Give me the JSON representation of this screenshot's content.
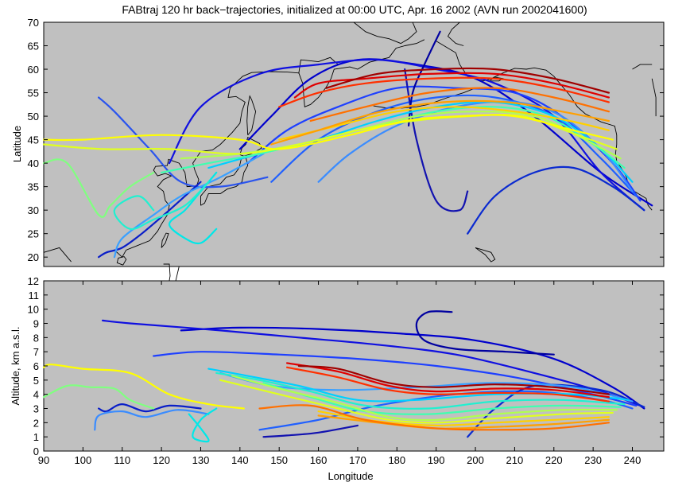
{
  "chart_data": [
    {
      "type": "line",
      "subtype": "map-trajectories",
      "title": "FABtraj 120 hr back−trajectories, initialized at 00:00 UTC, Apr. 16 2002 (AVN run 2002041600)",
      "xlabel": "",
      "ylabel": "Latitude",
      "xlim": [
        90,
        248
      ],
      "ylim": [
        18,
        70
      ],
      "xticks": [],
      "yticks": [
        20,
        25,
        30,
        35,
        40,
        45,
        50,
        55,
        60,
        65,
        70
      ],
      "background": "#c0c0c0",
      "coastline_color": "#000000",
      "grid": false,
      "series": [
        {
          "color": "#0000cd",
          "x": [
            245,
            232,
            215,
            200,
            185,
            170,
            158,
            148,
            140
          ],
          "y": [
            31,
            38,
            50,
            58,
            61,
            62,
            58,
            50,
            43
          ]
        },
        {
          "color": "#1010e0",
          "x": [
            243,
            232,
            220,
            205,
            190,
            175,
            160,
            145,
            130,
            122
          ],
          "y": [
            30,
            38,
            50,
            57,
            60,
            62,
            61,
            59,
            52,
            40
          ]
        },
        {
          "color": "#1e40ff",
          "x": [
            242,
            235,
            222,
            210,
            195,
            180,
            165,
            152,
            142
          ],
          "y": [
            32,
            40,
            50,
            55,
            56,
            56,
            52,
            47,
            40
          ]
        },
        {
          "color": "#2060ff",
          "x": [
            241,
            232,
            220,
            205,
            190,
            175,
            160,
            148
          ],
          "y": [
            33,
            41,
            50,
            54,
            54,
            51,
            45,
            36
          ]
        },
        {
          "color": "#3a8cff",
          "x": [
            240,
            233,
            222,
            210,
            195,
            180,
            168,
            160
          ],
          "y": [
            34,
            42,
            50,
            53,
            52,
            48,
            42,
            36
          ]
        },
        {
          "color": "#0a2ad0",
          "x": [
            243,
            235,
            225,
            215,
            205,
            198
          ],
          "y": [
            30,
            35,
            39,
            38,
            33,
            25
          ]
        },
        {
          "color": "#1212b0",
          "x": [
            182,
            185,
            190,
            196,
            198
          ],
          "y": [
            60,
            45,
            32,
            30,
            34
          ]
        },
        {
          "color": "#0000a0",
          "x": [
            191,
            187,
            184,
            183
          ],
          "y": [
            68,
            61,
            55,
            48
          ]
        },
        {
          "color": "#2a54ee",
          "x": [
            147,
            135,
            125,
            117,
            108,
            104
          ],
          "y": [
            37,
            35,
            36,
            43,
            51,
            54
          ]
        },
        {
          "color": "#0a1ec8",
          "x": [
            130,
            122,
            115,
            110,
            106,
            104
          ],
          "y": [
            36,
            30,
            25,
            22,
            21,
            20
          ]
        },
        {
          "color": "#3aa0ff",
          "x": [
            146,
            135,
            125,
            118,
            110,
            108
          ],
          "y": [
            42,
            37,
            33,
            29,
            24,
            20
          ]
        },
        {
          "color": "#00d0ff",
          "x": [
            240,
            232,
            220,
            205,
            190,
            175,
            160,
            145,
            132
          ],
          "y": [
            36,
            43,
            50,
            53,
            52,
            49,
            45,
            42,
            39
          ]
        },
        {
          "color": "#00e8e8",
          "x": [
            134,
            130,
            126,
            122,
            126,
            130,
            134
          ],
          "y": [
            38,
            34,
            30,
            27,
            24,
            23,
            26
          ]
        },
        {
          "color": "#20f0d0",
          "x": [
            132,
            126,
            118,
            112,
            108,
            114,
            118
          ],
          "y": [
            36,
            31,
            28,
            26,
            30,
            33,
            30
          ]
        },
        {
          "color": "#40ffb0",
          "x": [
            238,
            230,
            218,
            205,
            190,
            175,
            160,
            145,
            132,
            120
          ],
          "y": [
            39,
            44,
            50,
            52,
            51,
            48,
            45,
            42,
            40,
            38
          ]
        },
        {
          "color": "#80ff80",
          "x": [
            118,
            112,
            107,
            104,
            96,
            90
          ],
          "y": [
            38,
            35,
            31,
            29,
            40,
            40
          ]
        },
        {
          "color": "#b0ff50",
          "x": [
            237,
            228,
            215,
            200,
            185,
            170,
            155,
            140,
            125
          ],
          "y": [
            41,
            45,
            50,
            51,
            50,
            47,
            44,
            42,
            41
          ]
        },
        {
          "color": "#e0ff20",
          "x": [
            236,
            226,
            212,
            198,
            184,
            170,
            155,
            140,
            122,
            105,
            90
          ],
          "y": [
            43,
            46,
            50,
            50,
            49,
            47,
            44,
            42,
            43,
            43,
            44
          ]
        },
        {
          "color": "#ffff00",
          "x": [
            235,
            225,
            210,
            196,
            182,
            168,
            150,
            140,
            120,
            100,
            90
          ],
          "y": [
            45,
            47,
            50,
            50,
            49,
            46,
            43,
            45,
            46,
            45,
            45
          ]
        },
        {
          "color": "#ffd000",
          "x": [
            234,
            224,
            210,
            195,
            180,
            165,
            150
          ],
          "y": [
            47,
            49,
            51,
            52,
            51,
            48,
            45
          ]
        },
        {
          "color": "#ffa000",
          "x": [
            234,
            222,
            208,
            192,
            176,
            160,
            148
          ],
          "y": [
            49,
            51,
            53,
            53,
            51,
            47,
            44
          ]
        },
        {
          "color": "#ff7000",
          "x": [
            234,
            220,
            205,
            188,
            172,
            158
          ],
          "y": [
            51,
            54,
            56,
            55,
            52,
            49
          ]
        },
        {
          "color": "#ff3000",
          "x": [
            234,
            220,
            205,
            188,
            172,
            160,
            150
          ],
          "y": [
            53,
            56,
            58,
            58,
            57,
            55,
            52
          ]
        },
        {
          "color": "#e00000",
          "x": [
            234,
            220,
            205,
            188,
            172,
            160,
            154
          ],
          "y": [
            54,
            57,
            59,
            59,
            58,
            57,
            54
          ]
        },
        {
          "color": "#a00000",
          "x": [
            234,
            220,
            205,
            190,
            175,
            162
          ],
          "y": [
            55,
            58,
            60,
            60,
            59,
            56
          ]
        }
      ]
    },
    {
      "type": "line",
      "xlabel": "Longitude",
      "ylabel": "Altitude, km a.s.l.",
      "xlim": [
        90,
        248
      ],
      "ylim": [
        0,
        12
      ],
      "xticks": [
        90,
        100,
        110,
        120,
        130,
        140,
        150,
        160,
        170,
        180,
        190,
        200,
        210,
        220,
        230,
        240
      ],
      "yticks": [
        0,
        1,
        2,
        3,
        4,
        5,
        6,
        7,
        8,
        9,
        10,
        11,
        12
      ],
      "background": "#c0c0c0",
      "grid": false,
      "series": [
        {
          "color": "#0000cd",
          "x": [
            243,
            235,
            220,
            200,
            180,
            160,
            140,
            125
          ],
          "y": [
            3.0,
            4.5,
            6.5,
            7.8,
            8.3,
            8.6,
            8.7,
            8.5
          ]
        },
        {
          "color": "#1010e0",
          "x": [
            242,
            232,
            215,
            195,
            175,
            155,
            135,
            112,
            105
          ],
          "y": [
            3.2,
            4.2,
            5.5,
            6.8,
            7.5,
            8.0,
            8.5,
            9.0,
            9.2
          ]
        },
        {
          "color": "#0000a0",
          "x": [
            194,
            188,
            185,
            187,
            195,
            208,
            220
          ],
          "y": [
            9.8,
            9.8,
            9.0,
            7.8,
            7.2,
            7.0,
            6.8
          ]
        },
        {
          "color": "#1e40ff",
          "x": [
            241,
            230,
            210,
            190,
            170,
            150,
            130,
            118
          ],
          "y": [
            3.2,
            4.0,
            5.2,
            6.0,
            6.5,
            6.8,
            7.0,
            6.7
          ]
        },
        {
          "color": "#2060ff",
          "x": [
            240,
            232,
            215,
            195,
            175,
            160,
            145
          ],
          "y": [
            3.0,
            3.6,
            4.2,
            4.0,
            3.2,
            2.2,
            1.5
          ]
        },
        {
          "color": "#0a2ad0",
          "x": [
            243,
            232,
            215,
            205,
            198
          ],
          "y": [
            3.1,
            4.3,
            4.6,
            3.0,
            1.0
          ]
        },
        {
          "color": "#1212b0",
          "x": [
            170,
            160,
            152,
            146
          ],
          "y": [
            1.8,
            1.3,
            1.1,
            1.0
          ]
        },
        {
          "color": "#0a1ec8",
          "x": [
            130,
            122,
            116,
            110,
            106,
            104
          ],
          "y": [
            3.0,
            3.2,
            2.8,
            3.3,
            2.8,
            3.0
          ]
        },
        {
          "color": "#3a8cff",
          "x": [
            132,
            124,
            116,
            110,
            104,
            103
          ],
          "y": [
            2.6,
            2.9,
            2.4,
            2.8,
            2.5,
            1.5
          ]
        },
        {
          "color": "#3aa0ff",
          "x": [
            240,
            225,
            205,
            185,
            165,
            148,
            135
          ],
          "y": [
            3.5,
            4.5,
            4.8,
            4.5,
            4.3,
            4.6,
            5.5
          ]
        },
        {
          "color": "#00d0ff",
          "x": [
            239,
            225,
            205,
            185,
            170,
            155,
            140,
            132
          ],
          "y": [
            3.6,
            4.0,
            4.0,
            3.6,
            3.6,
            4.6,
            5.4,
            5.8
          ]
        },
        {
          "color": "#00e8e8",
          "x": [
            134,
            130,
            128,
            132,
            130,
            127
          ],
          "y": [
            3.0,
            2.2,
            1.0,
            0.7,
            1.6,
            2.6
          ]
        },
        {
          "color": "#20f0d0",
          "x": [
            238,
            222,
            205,
            188,
            172,
            158,
            145,
            134
          ],
          "y": [
            3.3,
            3.6,
            3.5,
            3.0,
            3.2,
            4.2,
            5.0,
            5.5
          ]
        },
        {
          "color": "#40ffb0",
          "x": [
            237,
            222,
            205,
            188,
            172,
            158,
            146
          ],
          "y": [
            3.1,
            3.2,
            3.0,
            2.6,
            2.8,
            3.8,
            4.8
          ]
        },
        {
          "color": "#80ff80",
          "x": [
            118,
            112,
            108,
            102,
            96,
            90
          ],
          "y": [
            3.0,
            3.6,
            4.4,
            4.5,
            4.6,
            3.8
          ]
        },
        {
          "color": "#b0ff50",
          "x": [
            236,
            222,
            205,
            190,
            178,
            165,
            150,
            138
          ],
          "y": [
            2.9,
            2.9,
            2.6,
            2.2,
            2.4,
            3.4,
            4.4,
            5.3
          ]
        },
        {
          "color": "#e0ff20",
          "x": [
            235,
            222,
            205,
            190,
            178,
            165,
            150,
            135
          ],
          "y": [
            2.7,
            2.6,
            2.3,
            2.0,
            2.2,
            3.0,
            4.0,
            5.0
          ]
        },
        {
          "color": "#ffff00",
          "x": [
            141,
            132,
            122,
            112,
            100,
            92,
            90
          ],
          "y": [
            3.0,
            3.3,
            4.0,
            5.5,
            5.8,
            6.1,
            5.9
          ]
        },
        {
          "color": "#ffd000",
          "x": [
            234,
            220,
            205,
            190,
            175,
            160
          ],
          "y": [
            2.4,
            2.2,
            2.0,
            1.8,
            2.1,
            2.8
          ]
        },
        {
          "color": "#ffa000",
          "x": [
            234,
            220,
            205,
            190,
            175,
            160
          ],
          "y": [
            2.2,
            1.9,
            1.7,
            1.6,
            2.0,
            2.5
          ]
        },
        {
          "color": "#ff7000",
          "x": [
            234,
            220,
            205,
            190,
            172,
            158,
            145
          ],
          "y": [
            2.0,
            1.6,
            1.5,
            1.6,
            2.2,
            3.2,
            3.0
          ]
        },
        {
          "color": "#ff3000",
          "x": [
            234,
            220,
            205,
            190,
            178,
            165,
            152
          ],
          "y": [
            3.5,
            4.0,
            4.1,
            4.0,
            4.3,
            5.2,
            5.9
          ]
        },
        {
          "color": "#e00000",
          "x": [
            234,
            220,
            205,
            190,
            178,
            165,
            152
          ],
          "y": [
            3.8,
            4.3,
            4.4,
            4.2,
            4.6,
            5.6,
            6.2
          ]
        },
        {
          "color": "#a00000",
          "x": [
            234,
            220,
            205,
            190,
            178,
            165,
            155
          ],
          "y": [
            4.0,
            4.5,
            4.7,
            4.5,
            4.8,
            5.8,
            6.0
          ]
        }
      ]
    }
  ]
}
